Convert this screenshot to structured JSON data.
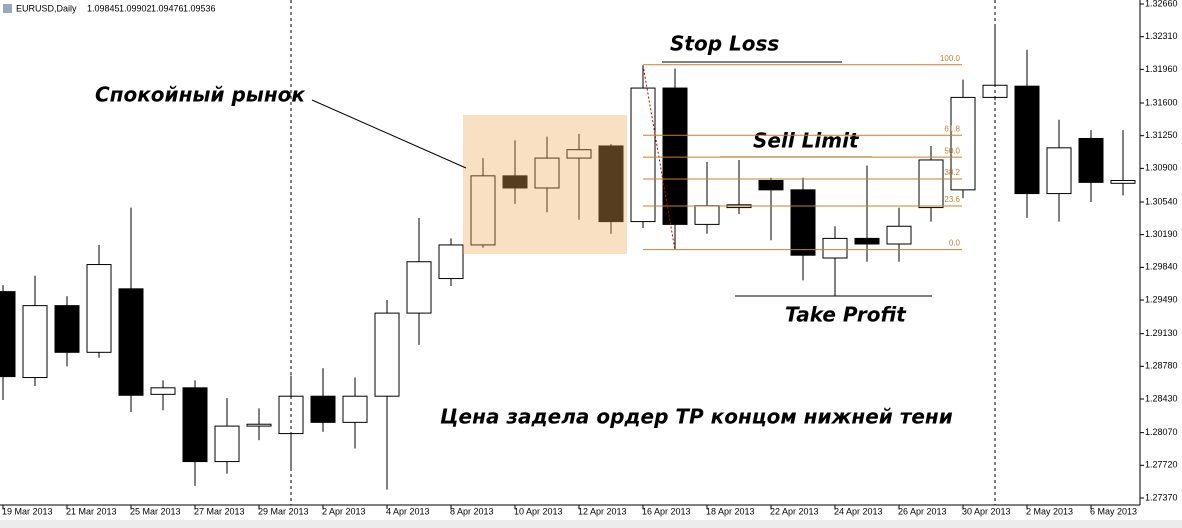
{
  "header": {
    "symbol": "EURUSD,Daily",
    "ohlc": [
      1.09845,
      1.09902,
      1.09476,
      1.09536
    ]
  },
  "chart_data": {
    "type": "candlestick",
    "categories": [
      "19 Mar 2013",
      null,
      "21 Mar 2013",
      null,
      "25 Mar 2013",
      null,
      "27 Mar 2013",
      null,
      "29 Mar 2013",
      null,
      "2 Apr 2013",
      null,
      "4 Apr 2013",
      null,
      "8 Apr 2013",
      null,
      "10 Apr 2013",
      null,
      "12 Apr 2013",
      null,
      "16 Apr 2013",
      null,
      "18 Apr 2013",
      null,
      "22 Apr 2013",
      null,
      "24 Apr 2013",
      null,
      "26 Apr 2013",
      null,
      "30 Apr 2013",
      null,
      "2 May 2013",
      null,
      "6 May 2013",
      null
    ],
    "open": [
      1.2958,
      1.2866,
      1.2943,
      1.2893,
      1.2961,
      1.2848,
      1.2855,
      1.2776,
      1.2814,
      1.2806,
      1.2846,
      1.2818,
      1.2846,
      1.2935,
      1.2972,
      1.3008,
      1.3082,
      1.3069,
      1.3101,
      1.3114,
      1.3033,
      1.3176,
      1.303,
      1.3048,
      1.3077,
      1.3067,
      1.2994,
      1.3015,
      1.3009,
      1.3048,
      1.3067,
      1.3166,
      1.3178,
      1.3063,
      1.3122,
      1.3074
    ],
    "high": [
      1.2965,
      1.2975,
      1.2953,
      1.3008,
      1.3048,
      1.2863,
      1.2863,
      1.2844,
      1.2833,
      1.2868,
      1.2876,
      1.2866,
      1.2949,
      1.3037,
      1.3015,
      1.3101,
      1.312,
      1.3124,
      1.3127,
      1.3116,
      1.32,
      1.3197,
      1.3097,
      1.3099,
      1.308,
      1.308,
      1.3028,
      1.3093,
      1.3048,
      1.3114,
      1.3185,
      1.3242,
      1.3217,
      1.3142,
      1.3131,
      1.3131
    ],
    "low": [
      1.2842,
      1.2857,
      1.2878,
      1.2887,
      1.2829,
      1.2831,
      1.275,
      1.2763,
      1.2799,
      1.2769,
      1.2808,
      1.279,
      1.2746,
      1.2901,
      1.2964,
      1.3005,
      1.3052,
      1.3043,
      1.3035,
      1.302,
      1.3026,
      1.3003,
      1.302,
      1.3041,
      1.3013,
      1.297,
      1.2953,
      1.299,
      1.299,
      1.3033,
      1.3058,
      1.3163,
      1.3037,
      1.3033,
      1.3054,
      1.3061
    ],
    "close": [
      1.2867,
      1.2943,
      1.2893,
      1.2987,
      1.2847,
      1.2855,
      1.2776,
      1.2814,
      1.2816,
      1.2846,
      1.2818,
      1.2846,
      1.2935,
      1.299,
      1.3008,
      1.3082,
      1.3069,
      1.3101,
      1.311,
      1.3033,
      1.3176,
      1.303,
      1.305,
      1.3051,
      1.3067,
      1.2997,
      1.3015,
      1.3009,
      1.3028,
      1.3099,
      1.3166,
      1.3179,
      1.3063,
      1.3112,
      1.3075,
      1.3077
    ],
    "up_color": "#ffffff",
    "down_color": "#000000",
    "ylim": [
      1.27295,
      1.32703
    ],
    "yticks": [
      {
        "value": 1.3266,
        "label": "1.32660"
      },
      {
        "value": 1.3231,
        "label": "1.32310"
      },
      {
        "value": 1.3196,
        "label": "1.31960"
      },
      {
        "value": 1.316,
        "label": "1.31600"
      },
      {
        "value": 1.3125,
        "label": "1.31250"
      },
      {
        "value": 1.309,
        "label": "1.30900"
      },
      {
        "value": 1.3054,
        "label": "1.30540"
      },
      {
        "value": 1.3019,
        "label": "1.30190"
      },
      {
        "value": 1.2984,
        "label": "1.29840"
      },
      {
        "value": 1.2949,
        "label": "1.29490"
      },
      {
        "value": 1.2913,
        "label": "1.29130"
      },
      {
        "value": 1.2878,
        "label": "1.28780"
      },
      {
        "value": 1.2843,
        "label": "1.28430"
      },
      {
        "value": 1.2807,
        "label": "1.28070"
      },
      {
        "value": 1.2772,
        "label": "1.27720"
      },
      {
        "value": 1.2737,
        "label": "1.27370"
      }
    ],
    "fibonacci": {
      "color": "#c8802f",
      "levels": [
        {
          "label": "100.0",
          "value": 1.3201
        },
        {
          "label": "61.8",
          "value": 1.31254
        },
        {
          "label": "50.0",
          "value": 1.3102
        },
        {
          "label": "38.2",
          "value": 1.30786
        },
        {
          "label": "23.6",
          "value": 1.30497
        },
        {
          "label": "0.0",
          "value": 1.3003
        }
      ]
    },
    "annotations": [
      "Stop Loss",
      "Sell Limit",
      "Take Profit",
      "Спокойный рынок",
      "Цена задела ордер TP концом нижней тени"
    ]
  }
}
